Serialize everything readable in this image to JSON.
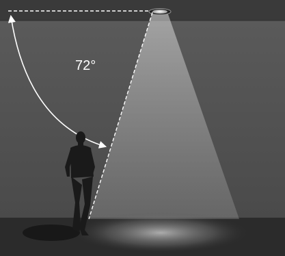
{
  "diagram": {
    "angle_label": "72°",
    "beam_angle_deg": 72
  },
  "colors": {
    "ceiling": "#3a3a3a",
    "wall": "#555555",
    "floor": "#2b2b2b",
    "beam": "#cfcfcf",
    "guide_lines": "#ffffff",
    "silhouette": "#1a1a1a"
  },
  "icons": {
    "light": "downlight-fixture-icon",
    "person": "walking-person-silhouette"
  }
}
